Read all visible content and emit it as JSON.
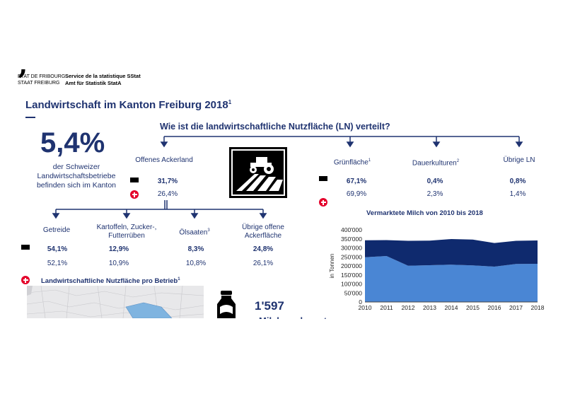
{
  "header": {
    "logo_line1": "ETAT DE FRIBOURG",
    "logo_line2": "STAAT FREIBURG",
    "service_fr": "Service de la statistique SStat",
    "service_de": "Amt für Statistik StatA"
  },
  "title": "Landwirtschaft im Kanton Freiburg 2018",
  "title_footnote": "1",
  "headline": {
    "value": "5,4%",
    "text_line1": "der Schweizer",
    "text_line2": "Landwirtschaftsbetriebe",
    "text_line3": "befinden sich im Kanton"
  },
  "question": "Wie ist die landwirtschaftliche Nutzfläche (LN) verteilt?",
  "ln_categories": [
    {
      "label": "Offenes Ackerland",
      "sup": "",
      "fr": "31,7%",
      "ch": "26,4%",
      "bold": true
    },
    {
      "label": "Grünfläche",
      "sup": "1",
      "fr": "67,1%",
      "ch": "69,9%",
      "bold": true
    },
    {
      "label": "Dauerkulturen",
      "sup": "2",
      "fr": "0,4%",
      "ch": "2,3%",
      "bold": true
    },
    {
      "label": "Übrige LN",
      "sup": "",
      "fr": "0,8%",
      "ch": "1,4%",
      "bold": true
    }
  ],
  "acker_sub": [
    {
      "label1": "Getreide",
      "label2": "",
      "sup": "",
      "fr": "54,1%",
      "ch": "52,1%"
    },
    {
      "label1": "Kartoffeln, Zucker-,",
      "label2": "Futterrüben",
      "sup": "",
      "fr": "12,9%",
      "ch": "10,9%"
    },
    {
      "label1": "Ölsaaten",
      "label2": "",
      "sup": "3",
      "fr": "8,3%",
      "ch": "10,8%"
    },
    {
      "label1": "Übrige offene",
      "label2": "Ackerfläche",
      "sup": "",
      "fr": "24,8%",
      "ch": "26,1%"
    }
  ],
  "map_title": "Landwirtschaftliche Nutzfläche pro Betrieb",
  "map_title_sup": "1",
  "milk": {
    "number": "1'597",
    "label": "Milchproduzent"
  },
  "colors": {
    "navy": "#1f3370",
    "dark_series": "#0f2a6e",
    "light_series": "#4a86d4",
    "swiss_red": "#e4002b"
  },
  "icons": [
    "tractor-field-icon",
    "milk-bottle-icon",
    "fribourg-flag-icon",
    "swiss-flag-icon"
  ],
  "chart_data": {
    "type": "area",
    "title": "Vermarktete Milch von 2010 bis 2018",
    "xlabel": "",
    "ylabel": "in Tonnen",
    "x": [
      2010,
      2011,
      2012,
      2013,
      2014,
      2015,
      2016,
      2017,
      2018
    ],
    "ylim": [
      0,
      400000
    ],
    "yticks": [
      "0",
      "50'000",
      "100'000",
      "150'000",
      "200'000",
      "250'000",
      "300'000",
      "350'000",
      "400'000"
    ],
    "stacked": true,
    "grid": false,
    "series": [
      {
        "color": "#4a86d4",
        "values": [
          248000,
          255000,
          201000,
          204000,
          207000,
          203000,
          196000,
          211000,
          212000
        ]
      },
      {
        "color": "#0f2a6e",
        "values": [
          94000,
          88000,
          138000,
          136000,
          142000,
          143000,
          131000,
          128000,
          129000
        ]
      }
    ]
  }
}
